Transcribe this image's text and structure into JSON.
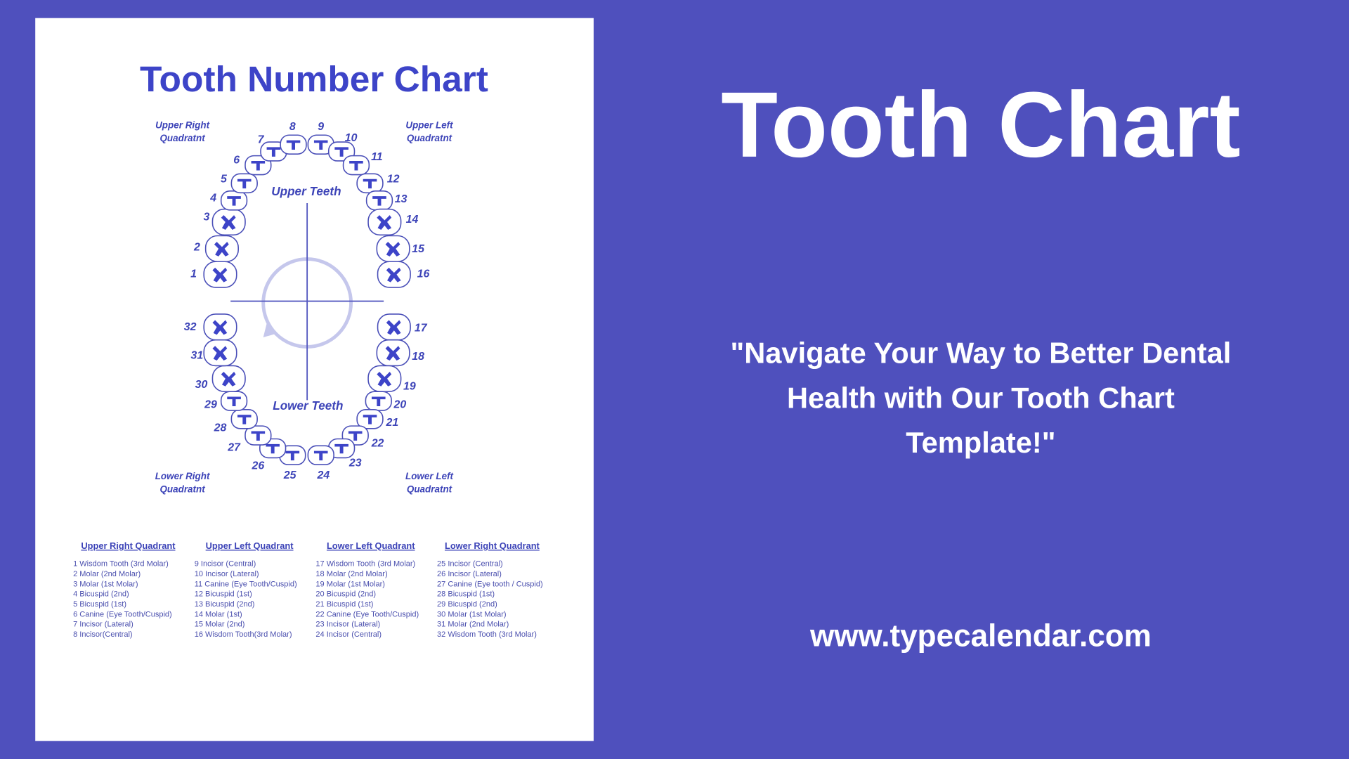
{
  "colors": {
    "background": "#4f50bd",
    "card": "#ffffff",
    "accent": "#3d44c8",
    "text_light": "#ffffff"
  },
  "card": {
    "title": "Tooth Number Chart",
    "quadrant_labels": {
      "upper_right": [
        "Upper Right",
        "Quadratnt"
      ],
      "upper_left": [
        "Upper Left",
        "Quadratnt"
      ],
      "lower_right": [
        "Lower Right",
        "Quadratnt"
      ],
      "lower_left": [
        "Lower Left",
        "Quadratnt"
      ]
    },
    "upper_teeth_label": "Upper Teeth",
    "lower_teeth_label": "Lower Teeth",
    "tooth_numbers": [
      "1",
      "2",
      "3",
      "4",
      "5",
      "6",
      "7",
      "8",
      "9",
      "10",
      "11",
      "12",
      "13",
      "14",
      "15",
      "16",
      "17",
      "18",
      "19",
      "20",
      "21",
      "22",
      "23",
      "24",
      "25",
      "26",
      "27",
      "28",
      "29",
      "30",
      "31",
      "32"
    ],
    "legend": [
      {
        "header": "Upper Right Quadrant",
        "items": [
          "1 Wisdom Tooth (3rd Molar)",
          "2 Molar (2nd Molar)",
          "3 Molar (1st Molar)",
          "4 Bicuspid (2nd)",
          "5 Bicuspid (1st)",
          "6 Canine (Eye Tooth/Cuspid)",
          "7 Incisor (Lateral)",
          "8 Incisor(Central)"
        ]
      },
      {
        "header": "Upper Left Quadrant",
        "items": [
          "9 Incisor (Central)",
          "10 Incisor (Lateral)",
          "11 Canine (Eye Tooth/Cuspid)",
          "12 Bicuspid (1st)",
          "13 Bicuspid (2nd)",
          "14 Molar (1st)",
          "15 Molar (2nd)",
          "16 Wisdom Tooth(3rd Molar)"
        ]
      },
      {
        "header": "Lower Left Quadrant",
        "items": [
          "17 Wisdom Tooth (3rd Molar)",
          "18 Molar (2nd Molar)",
          "19 Molar (1st Molar)",
          "20 Bicuspid (2nd)",
          "21 Bicuspid (1st)",
          "22 Canine (Eye Tooth/Cuspid)",
          "23 Incisor (Lateral)",
          "24 Incisor (Central)"
        ]
      },
      {
        "header": "Lower Right Quadrant",
        "items": [
          "25 Incisor (Central)",
          "26 Incisor (Lateral)",
          "27 Canine (Eye tooth / Cuspid)",
          "28 Bicuspid (1st)",
          "29 Bicuspid (2nd)",
          "30 Molar (1st Molar)",
          "31 Molar (2nd Molar)",
          "32 Wisdom Tooth (3rd Molar)"
        ]
      }
    ]
  },
  "hero": {
    "title": "Tooth Chart",
    "tagline": [
      "\"Navigate Your Way to Better Dental",
      "Health with Our Tooth Chart",
      "Template!\""
    ],
    "url": "www.typecalendar.com"
  }
}
